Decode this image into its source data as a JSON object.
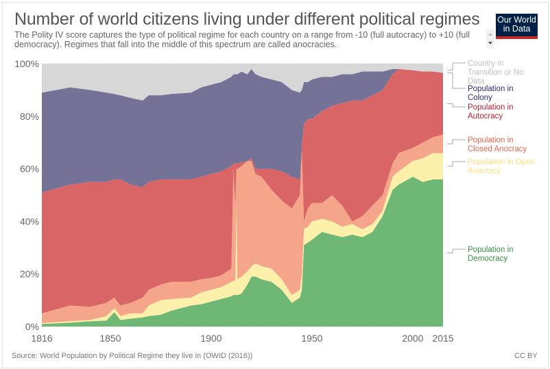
{
  "header": {
    "title": "Number of world citizens living under different political regimes",
    "subtitle": "The Polity IV score captures the type of political regime for each country on a range from -10 (full autocracy) to +10 (full democracy). Regimes that fall into the middle of this spectrum are called anocracies.",
    "logo_line1": "Our World",
    "logo_line2": "in Data"
  },
  "footer": {
    "source": "Source: World Population by Political Regime they live in (OWID (2016))",
    "license": "CC BY"
  },
  "chart_data": {
    "type": "area",
    "stacked": true,
    "title": "Number of world citizens living under different political regimes",
    "xlabel": "",
    "ylabel": "",
    "ylim": [
      0,
      100
    ],
    "xlim": [
      1816,
      2015
    ],
    "y_ticks": [
      "0%",
      "20%",
      "40%",
      "60%",
      "80%",
      "100%"
    ],
    "y_tick_values": [
      0,
      20,
      40,
      60,
      80,
      100
    ],
    "x_ticks": [
      "1816",
      "1850",
      "1900",
      "1950",
      "2000",
      "2015"
    ],
    "x_tick_values": [
      1816,
      1850,
      1900,
      1950,
      2000,
      2015
    ],
    "grid": true,
    "legend_position": "right",
    "x": [
      1816,
      1830,
      1840,
      1848,
      1852,
      1855,
      1860,
      1866,
      1869,
      1875,
      1880,
      1890,
      1895,
      1900,
      1905,
      1910,
      1911,
      1912,
      1912.5,
      1913,
      1915,
      1918,
      1920,
      1922,
      1925,
      1930,
      1935,
      1940,
      1944,
      1945,
      1946,
      1948,
      1950,
      1955,
      1960,
      1965,
      1970,
      1975,
      1980,
      1985,
      1990,
      1993,
      2000,
      2005,
      2010,
      2015
    ],
    "cumulative_tops": {
      "Population in Democracy": [
        1,
        1.5,
        2,
        2.3,
        5.5,
        2.5,
        3,
        3.5,
        4,
        4.5,
        6,
        8,
        8.5,
        9.5,
        10.5,
        11.5,
        12,
        12,
        12,
        12,
        12.5,
        16,
        19,
        19,
        18,
        17,
        14,
        9,
        11,
        14,
        31,
        32,
        33,
        36,
        35,
        34,
        35,
        34,
        36,
        42,
        52,
        54,
        57,
        55,
        56,
        56
      ],
      "Population in Open Anocracy": [
        1.3,
        2,
        2.5,
        4,
        7,
        4,
        5,
        5,
        8,
        10,
        10.5,
        11,
        13,
        14,
        15,
        17,
        17.5,
        17.5,
        46,
        18,
        19,
        21,
        23,
        24,
        23,
        22,
        18,
        12,
        14,
        20,
        37,
        38,
        40,
        41,
        40,
        38,
        39,
        37,
        39,
        44,
        57,
        59,
        63,
        64,
        66,
        66
      ],
      "Population in Closed Anocracy": [
        5,
        8,
        7.5,
        9,
        11,
        8,
        9,
        11,
        14,
        16,
        17,
        17,
        18,
        18.5,
        19.5,
        22,
        60,
        46,
        60,
        60,
        61,
        63,
        63,
        58,
        57,
        52,
        48,
        45,
        50,
        67,
        40,
        45,
        47,
        47,
        50,
        46,
        40,
        42,
        46,
        50,
        62,
        66,
        68,
        70,
        72,
        73
      ],
      "Population in Autocracy": [
        51,
        54,
        55,
        55,
        56,
        56,
        54,
        53,
        55,
        56,
        56,
        56,
        57,
        58,
        59,
        61,
        62,
        62,
        62,
        62,
        62.5,
        63,
        64,
        60,
        60,
        60,
        59,
        57,
        56,
        70,
        77,
        79,
        79,
        82,
        84,
        85,
        86,
        86,
        88,
        90,
        96,
        98,
        97.5,
        97,
        97,
        96.5
      ],
      "Population in Colony": [
        89,
        91,
        90,
        89,
        88.5,
        88,
        87,
        86,
        88,
        88,
        88.5,
        89,
        91,
        92,
        93,
        95,
        96,
        96,
        96,
        96,
        97,
        96,
        98,
        96,
        95,
        94,
        93,
        90,
        89,
        90,
        93,
        93,
        94,
        95,
        95,
        96,
        96,
        97,
        97,
        97,
        98,
        98,
        97.5,
        97,
        97,
        96.5
      ],
      "Country in Transition or No Data": [
        100,
        100,
        100,
        100,
        100,
        100,
        100,
        100,
        100,
        100,
        100,
        100,
        100,
        100,
        100,
        100,
        100,
        100,
        100,
        100,
        100,
        100,
        100,
        100,
        100,
        100,
        100,
        100,
        100,
        100,
        100,
        100,
        100,
        100,
        100,
        100,
        100,
        100,
        100,
        100,
        100,
        100,
        100,
        100,
        100,
        100
      ]
    },
    "series": [
      {
        "name": "Country in Transition or No Data",
        "label_lines": [
          "Country in",
          "Transition or No",
          "Data"
        ],
        "color": "#d7d7d7",
        "label_color": "#c0c0c0"
      },
      {
        "name": "Population in Colony",
        "label_lines": [
          "Population in",
          "Colony"
        ],
        "color": "#757298",
        "label_color": "#2a2a6f"
      },
      {
        "name": "Population in Autocracy",
        "label_lines": [
          "Population in",
          "Autocracy"
        ],
        "color": "#da6566",
        "label_color": "#b81f2d"
      },
      {
        "name": "Population in Closed Anocracy",
        "label_lines": [
          "Population in",
          "Closed Anocracy"
        ],
        "color": "#f4a58a",
        "label_color": "#e5654d"
      },
      {
        "name": "Population in Open Anocracy",
        "label_lines": [
          "Population in Open",
          "Anocracy"
        ],
        "color": "#fdf0aa",
        "label_color": "#f7e17a"
      },
      {
        "name": "Population in Democracy",
        "label_lines": [
          "Population in",
          "Democracy"
        ],
        "color": "#6eb774",
        "label_color": "#3a8f46"
      }
    ]
  }
}
